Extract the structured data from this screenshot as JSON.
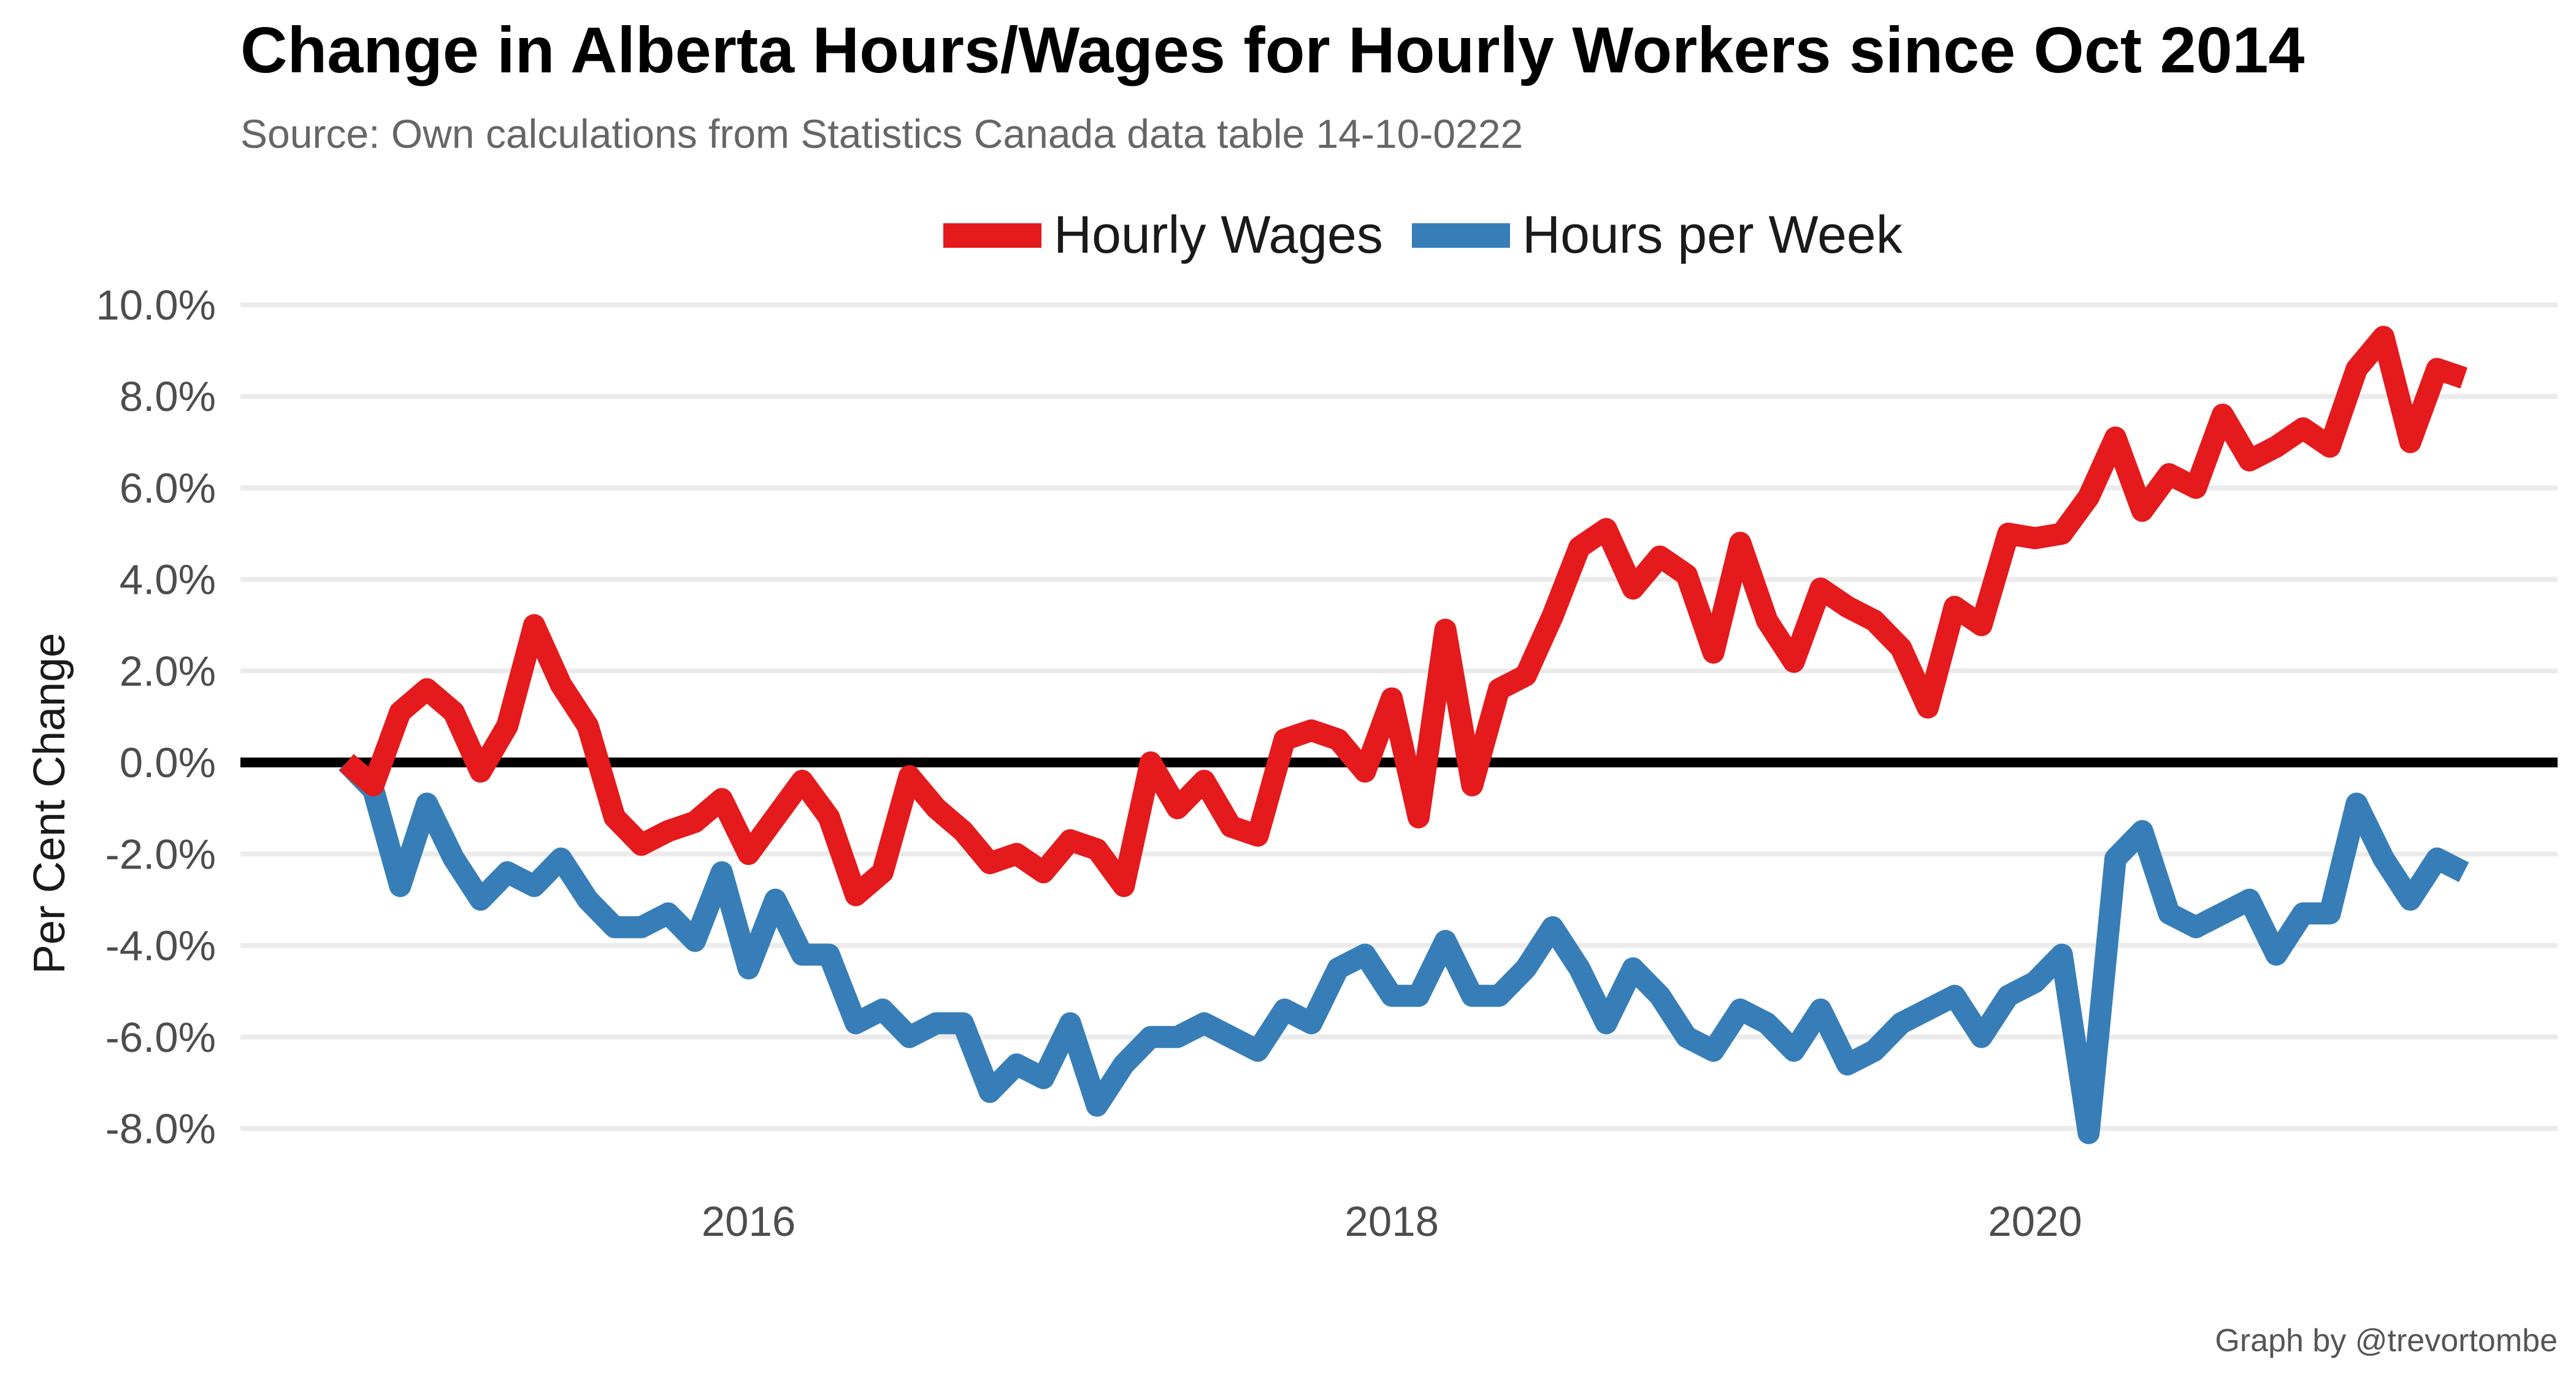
{
  "chart_data": {
    "type": "line",
    "title": "Change in Alberta Hours/Wages for Hourly Workers since Oct 2014",
    "subtitle": "Source: Own calculations from Statistics Canada data table 14-10-0222",
    "caption": "Graph by @trevortombe",
    "ylabel": "Per Cent Change",
    "xlabel": "",
    "x_start": "2014-10",
    "x_frequency": "monthly",
    "xlim": [
      "2014-10",
      "2021-05"
    ],
    "ylim": [
      -8.0,
      10.0
    ],
    "y_ticks": [
      -8.0,
      -6.0,
      -4.0,
      -2.0,
      0.0,
      2.0,
      4.0,
      6.0,
      8.0,
      10.0
    ],
    "y_tick_labels": [
      "-8.0%",
      "-6.0%",
      "-4.0%",
      "-2.0%",
      "0.0%",
      "2.0%",
      "4.0%",
      "6.0%",
      "8.0%",
      "10.0%"
    ],
    "x_ticks": [
      "2016-01",
      "2018-01",
      "2020-01"
    ],
    "x_tick_labels": [
      "2016",
      "2018",
      "2020"
    ],
    "grid": true,
    "legend_position": "top",
    "reference_line": 0.0,
    "series": [
      {
        "name": "Hourly Wages",
        "color": "#e41a1c",
        "values": [
          0.0,
          -0.5,
          1.1,
          1.6,
          1.1,
          -0.2,
          0.8,
          3.0,
          1.7,
          0.8,
          -1.2,
          -1.8,
          -1.5,
          -1.3,
          -0.8,
          -2.0,
          -1.2,
          -0.4,
          -1.2,
          -2.9,
          -2.4,
          -0.3,
          -1.0,
          -1.5,
          -2.2,
          -2.0,
          -2.4,
          -1.7,
          -1.9,
          -2.7,
          0.0,
          -1.0,
          -0.4,
          -1.4,
          -1.6,
          0.5,
          0.7,
          0.5,
          -0.2,
          1.4,
          -1.2,
          2.9,
          -0.5,
          1.6,
          1.9,
          3.2,
          4.7,
          5.1,
          3.8,
          4.5,
          4.1,
          2.4,
          4.8,
          3.1,
          2.2,
          3.8,
          3.4,
          3.1,
          2.5,
          1.2,
          3.4,
          3.0,
          5.0,
          4.9,
          5.0,
          5.8,
          7.1,
          5.5,
          6.3,
          6.0,
          7.6,
          6.6,
          6.9,
          7.3,
          6.9,
          8.6,
          9.3,
          7.0,
          8.6,
          8.4
        ]
      },
      {
        "name": "Hours per Week",
        "color": "#377eb8",
        "values": [
          0.0,
          -0.6,
          -2.7,
          -0.9,
          -2.1,
          -3.0,
          -2.4,
          -2.7,
          -2.1,
          -3.0,
          -3.6,
          -3.6,
          -3.3,
          -3.9,
          -2.4,
          -4.5,
          -3.0,
          -4.2,
          -4.2,
          -5.7,
          -5.4,
          -6.0,
          -5.7,
          -5.7,
          -7.2,
          -6.6,
          -6.9,
          -5.7,
          -7.5,
          -6.6,
          -6.0,
          -6.0,
          -5.7,
          -6.0,
          -6.3,
          -5.4,
          -5.7,
          -4.5,
          -4.2,
          -5.1,
          -5.1,
          -3.9,
          -5.1,
          -5.1,
          -4.5,
          -3.6,
          -4.5,
          -5.7,
          -4.5,
          -5.1,
          -6.0,
          -6.3,
          -5.4,
          -5.7,
          -6.3,
          -5.4,
          -6.6,
          -6.3,
          -5.7,
          -5.4,
          -5.1,
          -6.0,
          -5.1,
          -4.8,
          -4.2,
          -8.1,
          -2.1,
          -1.5,
          -3.3,
          -3.6,
          -3.3,
          -3.0,
          -4.2,
          -3.3,
          -3.3,
          -0.9,
          -2.1,
          -3.0,
          -2.1,
          -2.4
        ]
      }
    ]
  }
}
